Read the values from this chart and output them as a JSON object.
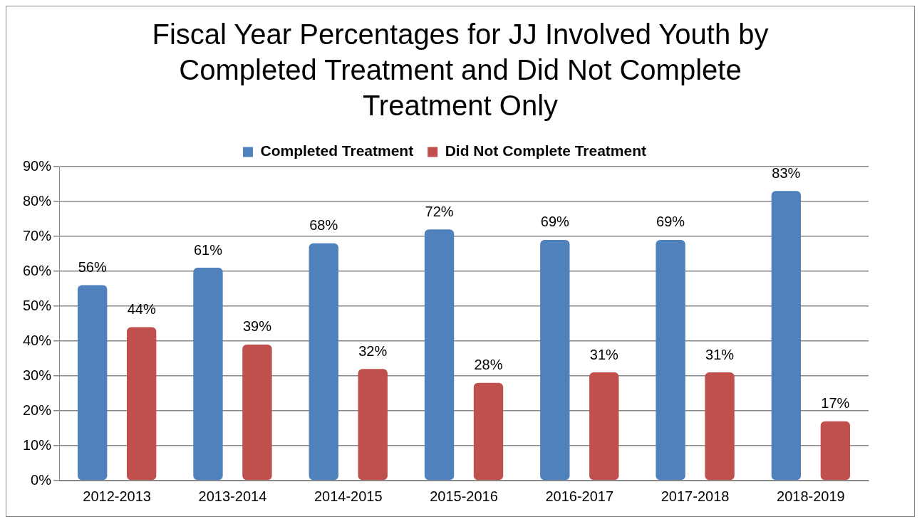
{
  "chart_data": {
    "type": "bar",
    "title": "Fiscal Year Percentages for JJ Involved Youth by Completed Treatment and Did Not Complete Treatment Only",
    "categories": [
      "2012-2013",
      "2013-2014",
      "2014-2015",
      "2015-2016",
      "2016-2017",
      "2017-2018",
      "2018-2019"
    ],
    "series": [
      {
        "name": "Completed Treatment",
        "color": "#4f81bd",
        "values": [
          56,
          61,
          68,
          72,
          69,
          69,
          83
        ],
        "value_labels": [
          "56%",
          "61%",
          "68%",
          "72%",
          "69%",
          "69%",
          "83%"
        ]
      },
      {
        "name": "Did Not Complete Treatment",
        "color": "#c0504d",
        "values": [
          44,
          39,
          32,
          28,
          31,
          31,
          17
        ],
        "value_labels": [
          "44%",
          "39%",
          "32%",
          "28%",
          "31%",
          "31%",
          "17%"
        ]
      }
    ],
    "ylim": [
      0,
      90
    ],
    "yticks": [
      {
        "value": 0,
        "label": "0%"
      },
      {
        "value": 10,
        "label": "10%"
      },
      {
        "value": 20,
        "label": "20%"
      },
      {
        "value": 30,
        "label": "30%"
      },
      {
        "value": 40,
        "label": "40%"
      },
      {
        "value": 50,
        "label": "50%"
      },
      {
        "value": 60,
        "label": "60%"
      },
      {
        "value": 70,
        "label": "70%"
      },
      {
        "value": 80,
        "label": "80%"
      },
      {
        "value": 90,
        "label": "90%"
      }
    ],
    "grid": "y",
    "legend": "top"
  }
}
